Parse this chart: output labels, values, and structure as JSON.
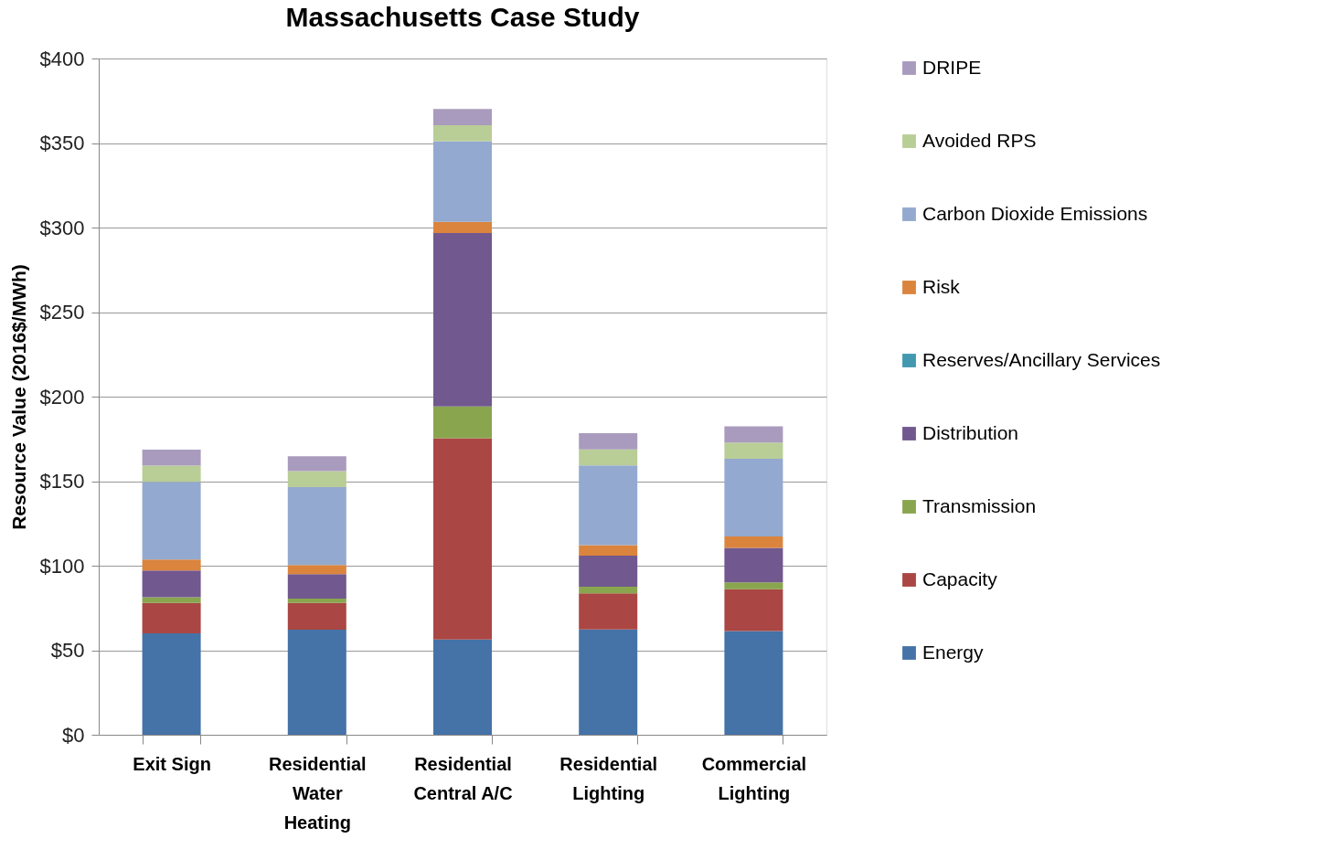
{
  "chart_data": {
    "type": "bar",
    "stacked": true,
    "title": "Massachusetts Case Study",
    "ylabel": "Resource Value (2016$/MWh)",
    "categories": [
      "Exit Sign",
      "Residential Water Heating",
      "Residential Central A/C",
      "Residential Lighting",
      "Commercial Lighting"
    ],
    "series": [
      {
        "name": "Energy",
        "color": "#4572a7",
        "values": [
          60,
          62.2,
          56.4,
          62.3,
          61.4
        ]
      },
      {
        "name": "Capacity",
        "color": "#aa4643",
        "values": [
          18,
          15.8,
          119,
          21.3,
          24.7
        ]
      },
      {
        "name": "Transmission",
        "color": "#89a54e",
        "values": [
          3.3,
          2.5,
          18.8,
          4,
          4
        ]
      },
      {
        "name": "Distribution",
        "color": "#71588f",
        "values": [
          15.8,
          14.5,
          102.6,
          18.3,
          20.5
        ]
      },
      {
        "name": "Reserves/Ancillary Services",
        "color": "#4198af",
        "values": [
          0,
          0,
          0,
          0,
          0
        ]
      },
      {
        "name": "Risk",
        "color": "#db843d",
        "values": [
          6.5,
          5.4,
          6.6,
          6.3,
          6.7
        ]
      },
      {
        "name": "Carbon Dioxide Emissions",
        "color": "#93a9cf",
        "values": [
          46,
          46.1,
          47.7,
          47.1,
          45.9
        ]
      },
      {
        "name": "Avoided RPS",
        "color": "#b9cd96",
        "values": [
          9.6,
          9.5,
          9.5,
          9.5,
          9.6
        ]
      },
      {
        "name": "DRIPE",
        "color": "#a99bbd",
        "values": [
          9.5,
          8.7,
          9.6,
          9.6,
          9.7
        ]
      }
    ],
    "ylim": [
      0,
      400
    ],
    "yticks": [
      {
        "value": 0,
        "label": "$0"
      },
      {
        "value": 50,
        "label": "$50"
      },
      {
        "value": 100,
        "label": "$100"
      },
      {
        "value": 150,
        "label": "$150"
      },
      {
        "value": 200,
        "label": "$200"
      },
      {
        "value": 250,
        "label": "$250"
      },
      {
        "value": 300,
        "label": "$300"
      },
      {
        "value": 350,
        "label": "$350"
      },
      {
        "value": 400,
        "label": "$400"
      }
    ],
    "grid": "y",
    "legend": "right"
  }
}
